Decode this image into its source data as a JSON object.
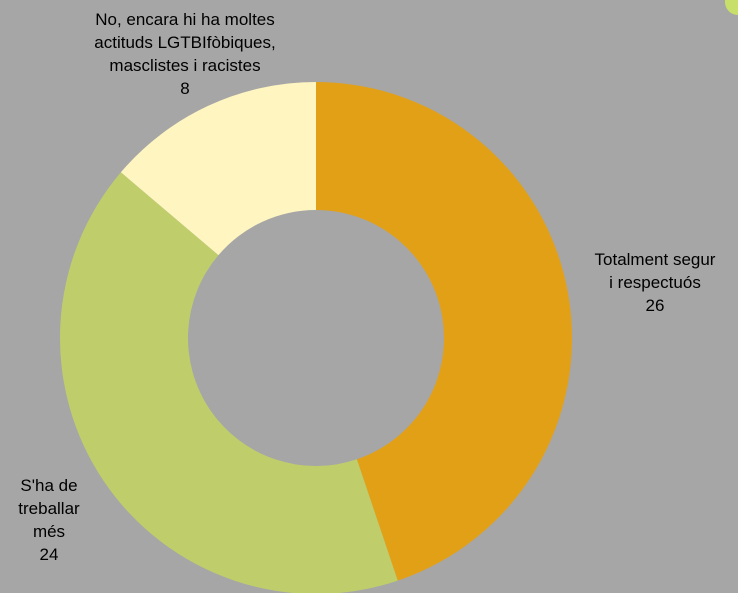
{
  "chart_data": {
    "type": "pie",
    "donut": true,
    "slices": [
      {
        "label": "Totalment segur i respectuós",
        "value": 26,
        "color": "#e2a016"
      },
      {
        "label": "S'ha de treballar més",
        "value": 24,
        "color": "#bfce6b"
      },
      {
        "label": "No, encara hi ha moltes actituds LGTBIfòbiques, masclistes i racistes",
        "value": 8,
        "color": "#fff5c0"
      }
    ]
  },
  "labels": {
    "slice_0": {
      "lines": [
        "Totalment segur",
        "i respectuós"
      ],
      "value": "26"
    },
    "slice_1": {
      "lines": [
        "S'ha de",
        "treballar",
        "més"
      ],
      "value": "24"
    },
    "slice_2": {
      "lines": [
        "No, encara hi ha moltes",
        "actituds LGTBIfòbiques,",
        "masclistes i racistes"
      ],
      "value": "8"
    }
  },
  "background_color": "#a6a6a6",
  "accent_color": "#c8e06a"
}
